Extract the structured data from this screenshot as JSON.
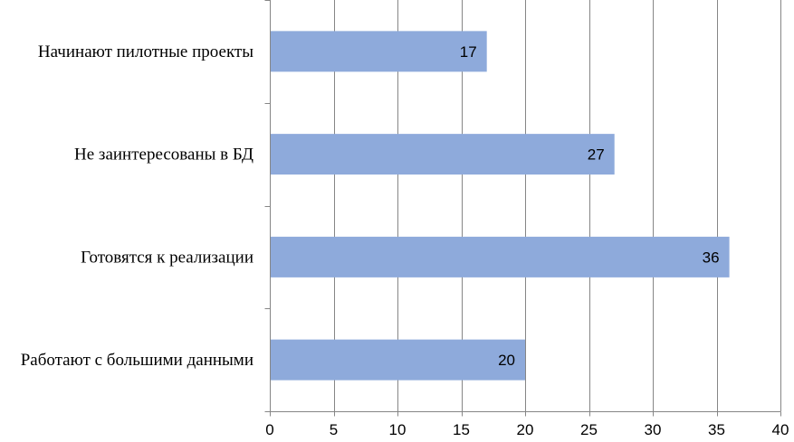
{
  "chart_data": {
    "type": "bar",
    "orientation": "horizontal",
    "categories": [
      "Работают с большими данными",
      "Готовятся к реализации",
      "Не заинтересованы в БД",
      "Начинают пилотные проекты"
    ],
    "values": [
      20,
      36,
      27,
      17
    ],
    "xlim": [
      0,
      40
    ],
    "x_ticks": [
      0,
      5,
      10,
      15,
      20,
      25,
      30,
      35,
      40
    ],
    "grid": "vertical",
    "legend": "none",
    "data_labels": true,
    "colors": {
      "bar": "#8eaadb",
      "grid": "#868686",
      "axis": "#868686",
      "text": "#000000"
    }
  }
}
